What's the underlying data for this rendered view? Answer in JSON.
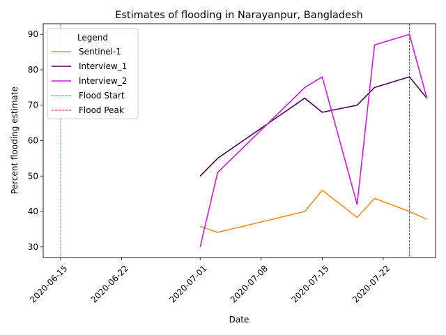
{
  "chart_data": {
    "type": "line",
    "title": "Estimates of flooding in Narayanpur, Bangladesh",
    "xlabel": "Date",
    "ylabel": "Percent flooding estimate",
    "xlim": [
      "2020-06-13",
      "2020-07-28"
    ],
    "ylim": [
      27,
      93
    ],
    "x_ticks": [
      "2020-06-15",
      "2020-06-22",
      "2020-07-01",
      "2020-07-08",
      "2020-07-15",
      "2020-07-22"
    ],
    "y_ticks": [
      30,
      40,
      50,
      60,
      70,
      80,
      90
    ],
    "grid": false,
    "legend": {
      "title": "Legend",
      "placement": "top-left"
    },
    "series": [
      {
        "name": "Sentinel-1",
        "color": "#ff8c1a",
        "style": "solid",
        "x": [
          "2020-07-01",
          "2020-07-03",
          "2020-07-13",
          "2020-07-15",
          "2020-07-19",
          "2020-07-21",
          "2020-07-25",
          "2020-07-27"
        ],
        "y": [
          35.8,
          34.1,
          40.0,
          46.0,
          38.3,
          43.7,
          40.0,
          37.8
        ]
      },
      {
        "name": "Interview_1",
        "color": "#4b0055",
        "style": "solid",
        "x": [
          "2020-07-01",
          "2020-07-03",
          "2020-07-13",
          "2020-07-15",
          "2020-07-19",
          "2020-07-21",
          "2020-07-25",
          "2020-07-27"
        ],
        "y": [
          50,
          55,
          72,
          68,
          70,
          75,
          78,
          72
        ]
      },
      {
        "name": "Interview_2",
        "color": "#d516e8",
        "style": "solid",
        "x": [
          "2020-07-01",
          "2020-07-03",
          "2020-07-13",
          "2020-07-15",
          "2020-07-19",
          "2020-07-21",
          "2020-07-25",
          "2020-07-27"
        ],
        "y": [
          30,
          51,
          75,
          78,
          42,
          87,
          90,
          72
        ]
      }
    ],
    "vlines": [
      {
        "name": "Flood Start",
        "x": "2020-06-15",
        "color": "#22bb22",
        "style": "dashed"
      },
      {
        "name": "Flood Peak",
        "x": "2020-07-25",
        "color": "#c2185b",
        "style": "dashed"
      }
    ]
  }
}
